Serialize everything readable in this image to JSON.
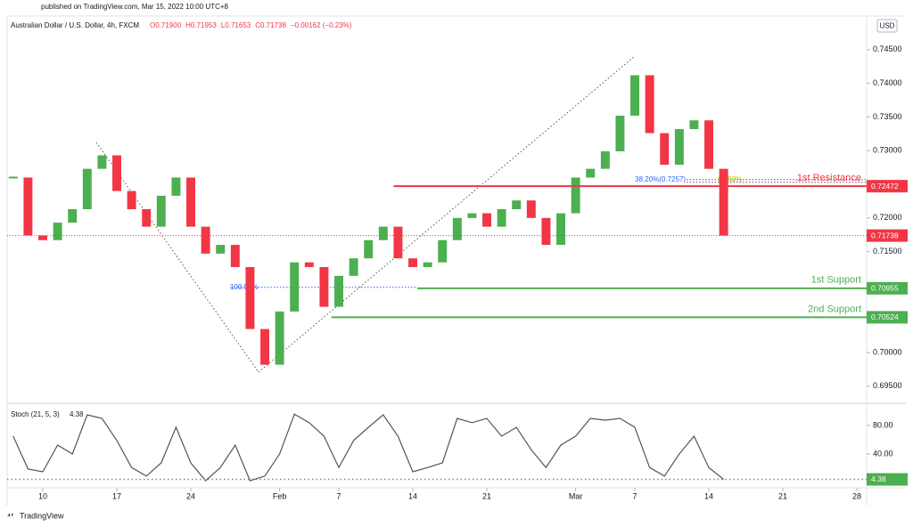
{
  "header": {
    "published": "published on TradingView.com, Mar 15, 2022 10:00 UTC+8"
  },
  "footer": {
    "brand": "TradingView"
  },
  "chart_data": [
    {
      "type": "candlestick",
      "title": "Australian Dollar / U.S. Dollar, 4h, FXCM",
      "ohlc_text": [
        "O0.71900",
        "H0.71953",
        "L0.71653",
        "C0.71738",
        "−0.00162 (−0.23%)"
      ],
      "currency": "USD",
      "x": [
        -2,
        -1,
        0,
        1,
        2,
        3,
        4,
        5,
        6,
        7,
        8,
        9,
        10,
        11,
        12,
        13,
        14,
        15,
        16,
        17,
        18,
        19,
        20,
        21,
        22,
        23,
        24,
        25,
        26,
        27,
        28,
        29,
        30,
        31,
        32,
        33,
        34,
        35,
        36,
        37,
        38,
        39,
        40,
        41,
        42,
        43,
        44,
        45,
        46
      ],
      "values": [
        0.726,
        0.7174,
        0.7167,
        0.7193,
        0.7213,
        0.7273,
        0.7293,
        0.724,
        0.7213,
        0.7187,
        0.7233,
        0.726,
        0.7187,
        0.7147,
        0.716,
        0.7127,
        0.7035,
        0.6982,
        0.7061,
        0.7134,
        0.7127,
        0.7068,
        0.7114,
        0.714,
        0.7167,
        0.7187,
        0.714,
        0.7127,
        0.7134,
        0.7167,
        0.72,
        0.7207,
        0.7187,
        0.7213,
        0.7226,
        0.72,
        0.716,
        0.7207,
        0.726,
        0.7273,
        0.7299,
        0.7352,
        0.7412,
        0.7326,
        0.7279,
        0.7332,
        0.7345,
        0.7273,
        0.71738
      ],
      "up_color": "#4caf50",
      "down_color": "#f23645",
      "xlim": [
        -2.41,
        55.66
      ],
      "xticks": [
        {
          "value": 0,
          "label": "10"
        },
        {
          "value": 5,
          "label": "17"
        },
        {
          "value": 10,
          "label": "24"
        },
        {
          "value": 16,
          "label": "Feb"
        },
        {
          "value": 20,
          "label": "7"
        },
        {
          "value": 25,
          "label": "14"
        },
        {
          "value": 30,
          "label": "21"
        },
        {
          "value": 36,
          "label": "Mar"
        },
        {
          "value": 40,
          "label": "7"
        },
        {
          "value": 45,
          "label": "14"
        },
        {
          "value": 50,
          "label": "21"
        },
        {
          "value": 55,
          "label": "28"
        }
      ],
      "ylim": [
        0.6926,
        0.75
      ],
      "yticks": [
        {
          "value": 0.745,
          "label": "0.74500"
        },
        {
          "value": 0.74,
          "label": "0.74000"
        },
        {
          "value": 0.735,
          "label": "0.73500"
        },
        {
          "value": 0.73,
          "label": "0.73000"
        },
        {
          "value": 0.72,
          "label": "0.72000"
        },
        {
          "value": 0.715,
          "label": "0.71500"
        },
        {
          "value": 0.7,
          "label": "0.70000"
        },
        {
          "value": 0.695,
          "label": "0.69500"
        }
      ],
      "levels": [
        {
          "label": "1st Resistance",
          "value": 0.72472,
          "color": "#f23645",
          "x_start": 23.7
        },
        {
          "label": "1st Support",
          "value": 0.70955,
          "color": "#4caf50",
          "x_start": 25.3
        },
        {
          "label": "2nd Support",
          "value": 0.70524,
          "color": "#4caf50",
          "x_start": 19.5
        }
      ],
      "fib": [
        {
          "label": "100.00%",
          "value": 0.7097,
          "color": "#2962ff",
          "x_start": 12.65,
          "x_end": 25.3
        },
        {
          "label": "38.20%(0.7257)",
          "value": 0.7257,
          "color": "#2962ff",
          "x_start": 43.5,
          "x_end": 55.66
        },
        {
          "label": "61.80%",
          "value": 0.7253,
          "color": "#c9b400",
          "x_start": 43.5,
          "x_end": 55.66
        }
      ]
    },
    {
      "type": "line",
      "title": "Stoch (21, 5, 3)",
      "color": "#555555",
      "tag_color": "#4caf50",
      "x": [
        -2,
        -1,
        0,
        1,
        2,
        3,
        4,
        5,
        6,
        7,
        8,
        9,
        10,
        11,
        12,
        13,
        14,
        15,
        16,
        17,
        18,
        19,
        20,
        21,
        22,
        23,
        24,
        25,
        26,
        27,
        28,
        29,
        30,
        31,
        32,
        33,
        34,
        35,
        36,
        37,
        38,
        39,
        40,
        41,
        42,
        43,
        44,
        45,
        46
      ],
      "values": [
        65,
        19,
        15,
        52.5,
        40,
        95,
        90,
        59,
        21,
        9,
        27.5,
        77.5,
        27.5,
        2.5,
        21,
        52.5,
        2.5,
        9,
        40,
        96,
        84,
        65,
        21,
        59,
        77.5,
        95,
        65,
        15,
        21,
        27.5,
        90,
        84,
        90,
        65,
        77.5,
        46,
        21,
        52.5,
        65,
        90,
        87.5,
        90,
        77.5,
        21,
        9,
        40,
        65,
        21,
        4.38
      ],
      "xlim": [
        -2.41,
        55.66
      ],
      "ylim": [
        -7.5,
        108.75
      ],
      "yticks": [
        {
          "value": 80,
          "label": "80.00"
        },
        {
          "value": 40,
          "label": "40.00"
        }
      ]
    }
  ]
}
